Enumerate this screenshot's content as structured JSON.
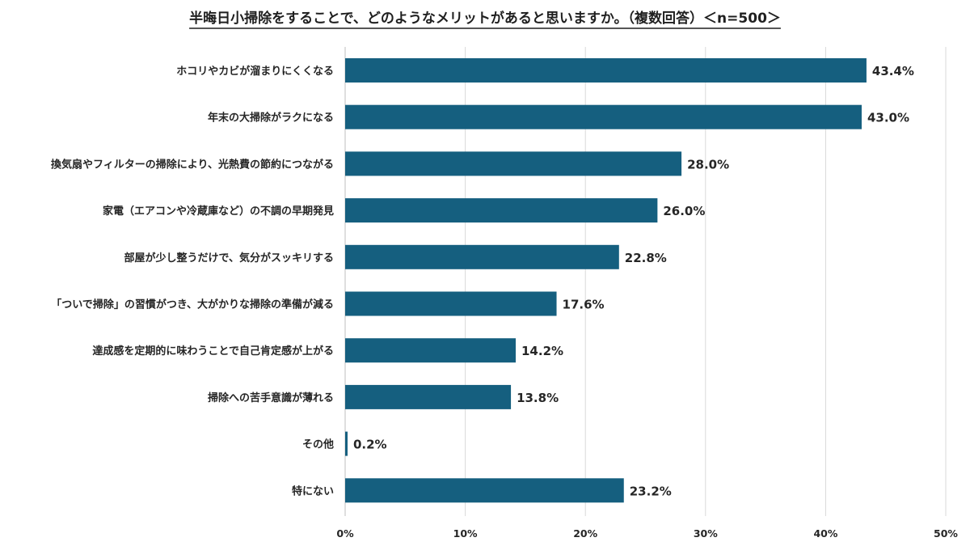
{
  "chart_data": {
    "type": "bar",
    "orientation": "horizontal",
    "title": "半晦日小掃除をすることで、どのようなメリットがあると思いますか。（複数回答）＜n=500＞",
    "categories": [
      "ホコリやカビが溜まりにくくなる",
      "年末の大掃除がラクになる",
      "換気扇やフィルターの掃除により、光熱費の節約につながる",
      "家電（エアコンや冷蔵庫など）の不調の早期発見",
      "部屋が少し整うだけで、気分がスッキリする",
      "「ついで掃除」の習慣がつき、大がかりな掃除の準備が減る",
      "達成感を定期的に味わうことで自己肯定感が上がる",
      "掃除への苦手意識が薄れる",
      "その他",
      "特にない"
    ],
    "values": [
      43.4,
      43.0,
      28.0,
      26.0,
      22.8,
      17.6,
      14.2,
      13.8,
      0.2,
      23.2
    ],
    "value_labels": [
      "43.4%",
      "43.0%",
      "28.0%",
      "26.0%",
      "22.8%",
      "17.6%",
      "14.2%",
      "13.8%",
      "0.2%",
      "23.2%"
    ],
    "xlim": [
      0,
      50
    ],
    "x_ticks": [
      0,
      10,
      20,
      30,
      40,
      50
    ],
    "x_tick_labels": [
      "0%",
      "10%",
      "20%",
      "30%",
      "40%",
      "50%"
    ],
    "xlabel": "",
    "ylabel": "",
    "grid": true,
    "legend": "none",
    "bar_color": "#155f7f"
  }
}
